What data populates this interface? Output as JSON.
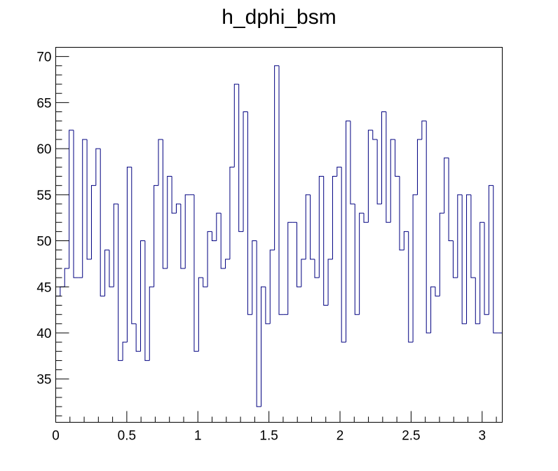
{
  "chart_data": {
    "type": "histogram",
    "title": "h_dphi_bsm",
    "xlabel": "",
    "ylabel": "",
    "xlim": [
      0,
      3.14159
    ],
    "ylim": [
      30.3,
      71
    ],
    "bin_width": 0.0314159,
    "x_ticks": [
      {
        "value": 0,
        "label": "0"
      },
      {
        "value": 0.5,
        "label": "0.5"
      },
      {
        "value": 1,
        "label": "1"
      },
      {
        "value": 1.5,
        "label": "1.5"
      },
      {
        "value": 2,
        "label": "2"
      },
      {
        "value": 2.5,
        "label": "2.5"
      },
      {
        "value": 3,
        "label": "3"
      }
    ],
    "y_ticks": [
      {
        "value": 35,
        "label": "35"
      },
      {
        "value": 40,
        "label": "40"
      },
      {
        "value": 45,
        "label": "45"
      },
      {
        "value": 50,
        "label": "50"
      },
      {
        "value": 55,
        "label": "55"
      },
      {
        "value": 60,
        "label": "60"
      },
      {
        "value": 65,
        "label": "65"
      },
      {
        "value": 70,
        "label": "70"
      }
    ],
    "line_color": "#000080",
    "grid": false,
    "legend": "none",
    "values": [
      44,
      45,
      47,
      62,
      46,
      46,
      61,
      48,
      56,
      60,
      44,
      49,
      45,
      54,
      37,
      39,
      58,
      41,
      38,
      50,
      37,
      45,
      56,
      61,
      47,
      57,
      53,
      54,
      47,
      55,
      55,
      38,
      46,
      45,
      51,
      50,
      53,
      47,
      48,
      58,
      67,
      51,
      64,
      42,
      50,
      32,
      45,
      41,
      49,
      69,
      42,
      42,
      52,
      52,
      45,
      48,
      55,
      48,
      46,
      57,
      43,
      48,
      57,
      58,
      39,
      63,
      54,
      42,
      53,
      52,
      62,
      61,
      54,
      64,
      52,
      61,
      57,
      49,
      51,
      39,
      55,
      61,
      63,
      40,
      45,
      44,
      53,
      59,
      50,
      46,
      55,
      41,
      55,
      46,
      41,
      52,
      42,
      56,
      40,
      40
    ]
  }
}
